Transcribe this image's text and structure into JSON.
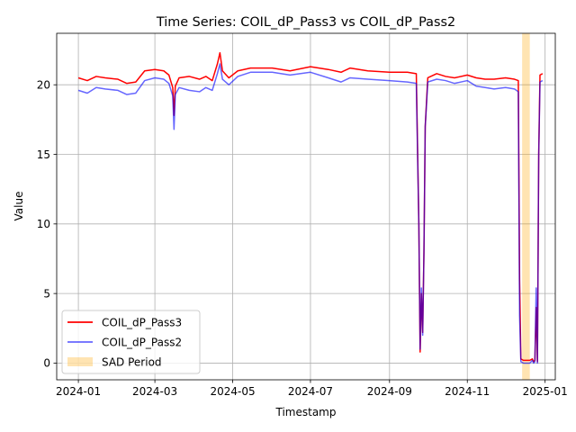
{
  "chart_data": {
    "type": "line",
    "title": "Time Series: COIL_dP_Pass3 vs COIL_dP_Pass2",
    "xlabel": "Timestamp",
    "ylabel": "Value",
    "x_range": [
      "2023-12-15",
      "2025-01-09"
    ],
    "ylim": [
      -1.2,
      23.7
    ],
    "x_ticks": [
      {
        "date": "2024-01-01",
        "label": "2024-01"
      },
      {
        "date": "2024-03-01",
        "label": "2024-03"
      },
      {
        "date": "2024-05-01",
        "label": "2024-05"
      },
      {
        "date": "2024-07-01",
        "label": "2024-07"
      },
      {
        "date": "2024-09-01",
        "label": "2024-09"
      },
      {
        "date": "2024-11-01",
        "label": "2024-11"
      },
      {
        "date": "2025-01-01",
        "label": "2025-01"
      }
    ],
    "y_ticks": [
      0,
      5,
      10,
      15,
      20
    ],
    "grid": true,
    "legend_position": "lower-left",
    "shaded_region": {
      "name": "SAD Period",
      "start": "2024-12-14",
      "end": "2024-12-20",
      "color": "#ffa500",
      "opacity": 0.3
    },
    "series": [
      {
        "name": "COIL_dP_Pass3",
        "color": "#ff0000",
        "opacity": 1.0,
        "points": [
          [
            "2024-01-01",
            20.5
          ],
          [
            "2024-01-08",
            20.3
          ],
          [
            "2024-01-15",
            20.6
          ],
          [
            "2024-01-22",
            20.5
          ],
          [
            "2024-02-01",
            20.4
          ],
          [
            "2024-02-08",
            20.1
          ],
          [
            "2024-02-15",
            20.2
          ],
          [
            "2024-02-22",
            21.0
          ],
          [
            "2024-03-01",
            21.1
          ],
          [
            "2024-03-08",
            21.0
          ],
          [
            "2024-03-12",
            20.7
          ],
          [
            "2024-03-15",
            19.8
          ],
          [
            "2024-03-16",
            17.8
          ],
          [
            "2024-03-17",
            19.9
          ],
          [
            "2024-03-20",
            20.5
          ],
          [
            "2024-03-28",
            20.6
          ],
          [
            "2024-04-05",
            20.4
          ],
          [
            "2024-04-10",
            20.6
          ],
          [
            "2024-04-15",
            20.3
          ],
          [
            "2024-04-19",
            21.5
          ],
          [
            "2024-04-21",
            22.3
          ],
          [
            "2024-04-23",
            21.0
          ],
          [
            "2024-04-28",
            20.5
          ],
          [
            "2024-05-05",
            21.0
          ],
          [
            "2024-05-15",
            21.2
          ],
          [
            "2024-06-01",
            21.2
          ],
          [
            "2024-06-15",
            21.0
          ],
          [
            "2024-07-01",
            21.3
          ],
          [
            "2024-07-15",
            21.1
          ],
          [
            "2024-07-25",
            20.9
          ],
          [
            "2024-08-01",
            21.2
          ],
          [
            "2024-08-15",
            21.0
          ],
          [
            "2024-09-01",
            20.9
          ],
          [
            "2024-09-15",
            20.9
          ],
          [
            "2024-09-22",
            20.8
          ],
          [
            "2024-09-24",
            10.0
          ],
          [
            "2024-09-25",
            0.8
          ],
          [
            "2024-09-26",
            5.0
          ],
          [
            "2024-09-27",
            2.2
          ],
          [
            "2024-09-28",
            8.0
          ],
          [
            "2024-09-29",
            17.0
          ],
          [
            "2024-10-01",
            20.5
          ],
          [
            "2024-10-08",
            20.8
          ],
          [
            "2024-10-15",
            20.6
          ],
          [
            "2024-10-22",
            20.5
          ],
          [
            "2024-11-01",
            20.7
          ],
          [
            "2024-11-08",
            20.5
          ],
          [
            "2024-11-15",
            20.4
          ],
          [
            "2024-11-22",
            20.4
          ],
          [
            "2024-12-01",
            20.5
          ],
          [
            "2024-12-08",
            20.4
          ],
          [
            "2024-12-11",
            20.3
          ],
          [
            "2024-12-12",
            6.0
          ],
          [
            "2024-12-13",
            0.3
          ],
          [
            "2024-12-15",
            0.2
          ],
          [
            "2024-12-20",
            0.2
          ],
          [
            "2024-12-22",
            0.3
          ],
          [
            "2024-12-23",
            0.1
          ],
          [
            "2024-12-24",
            0.2
          ],
          [
            "2024-12-25",
            4.0
          ],
          [
            "2024-12-26",
            0.1
          ],
          [
            "2024-12-27",
            15.0
          ],
          [
            "2024-12-28",
            20.7
          ],
          [
            "2024-12-30",
            20.8
          ]
        ]
      },
      {
        "name": "COIL_dP_Pass2",
        "color": "#0000ff",
        "opacity": 0.6,
        "points": [
          [
            "2024-01-01",
            19.6
          ],
          [
            "2024-01-08",
            19.4
          ],
          [
            "2024-01-15",
            19.8
          ],
          [
            "2024-01-22",
            19.7
          ],
          [
            "2024-02-01",
            19.6
          ],
          [
            "2024-02-08",
            19.3
          ],
          [
            "2024-02-15",
            19.4
          ],
          [
            "2024-02-22",
            20.3
          ],
          [
            "2024-03-01",
            20.5
          ],
          [
            "2024-03-08",
            20.4
          ],
          [
            "2024-03-12",
            20.1
          ],
          [
            "2024-03-15",
            19.2
          ],
          [
            "2024-03-16",
            16.8
          ],
          [
            "2024-03-17",
            19.3
          ],
          [
            "2024-03-20",
            19.8
          ],
          [
            "2024-03-28",
            19.6
          ],
          [
            "2024-04-05",
            19.5
          ],
          [
            "2024-04-10",
            19.8
          ],
          [
            "2024-04-15",
            19.6
          ],
          [
            "2024-04-19",
            20.8
          ],
          [
            "2024-04-21",
            21.5
          ],
          [
            "2024-04-23",
            20.4
          ],
          [
            "2024-04-28",
            20.0
          ],
          [
            "2024-05-05",
            20.6
          ],
          [
            "2024-05-15",
            20.9
          ],
          [
            "2024-06-01",
            20.9
          ],
          [
            "2024-06-15",
            20.7
          ],
          [
            "2024-07-01",
            20.9
          ],
          [
            "2024-07-15",
            20.5
          ],
          [
            "2024-07-25",
            20.2
          ],
          [
            "2024-08-01",
            20.5
          ],
          [
            "2024-08-15",
            20.4
          ],
          [
            "2024-09-01",
            20.3
          ],
          [
            "2024-09-15",
            20.2
          ],
          [
            "2024-09-22",
            20.1
          ],
          [
            "2024-09-24",
            10.0
          ],
          [
            "2024-09-25",
            1.0
          ],
          [
            "2024-09-26",
            5.4
          ],
          [
            "2024-09-27",
            2.0
          ],
          [
            "2024-09-28",
            8.0
          ],
          [
            "2024-09-29",
            17.0
          ],
          [
            "2024-10-01",
            20.2
          ],
          [
            "2024-10-08",
            20.4
          ],
          [
            "2024-10-15",
            20.3
          ],
          [
            "2024-10-22",
            20.1
          ],
          [
            "2024-11-01",
            20.3
          ],
          [
            "2024-11-08",
            19.9
          ],
          [
            "2024-11-15",
            19.8
          ],
          [
            "2024-11-22",
            19.7
          ],
          [
            "2024-12-01",
            19.8
          ],
          [
            "2024-12-08",
            19.7
          ],
          [
            "2024-12-11",
            19.5
          ],
          [
            "2024-12-12",
            3.4
          ],
          [
            "2024-12-13",
            0.1
          ],
          [
            "2024-12-15",
            0.0
          ],
          [
            "2024-12-20",
            0.0
          ],
          [
            "2024-12-22",
            0.2
          ],
          [
            "2024-12-23",
            0.0
          ],
          [
            "2024-12-24",
            0.1
          ],
          [
            "2024-12-25",
            5.4
          ],
          [
            "2024-12-26",
            0.0
          ],
          [
            "2024-12-27",
            15.0
          ],
          [
            "2024-12-28",
            20.2
          ],
          [
            "2024-12-30",
            20.3
          ]
        ]
      }
    ]
  }
}
